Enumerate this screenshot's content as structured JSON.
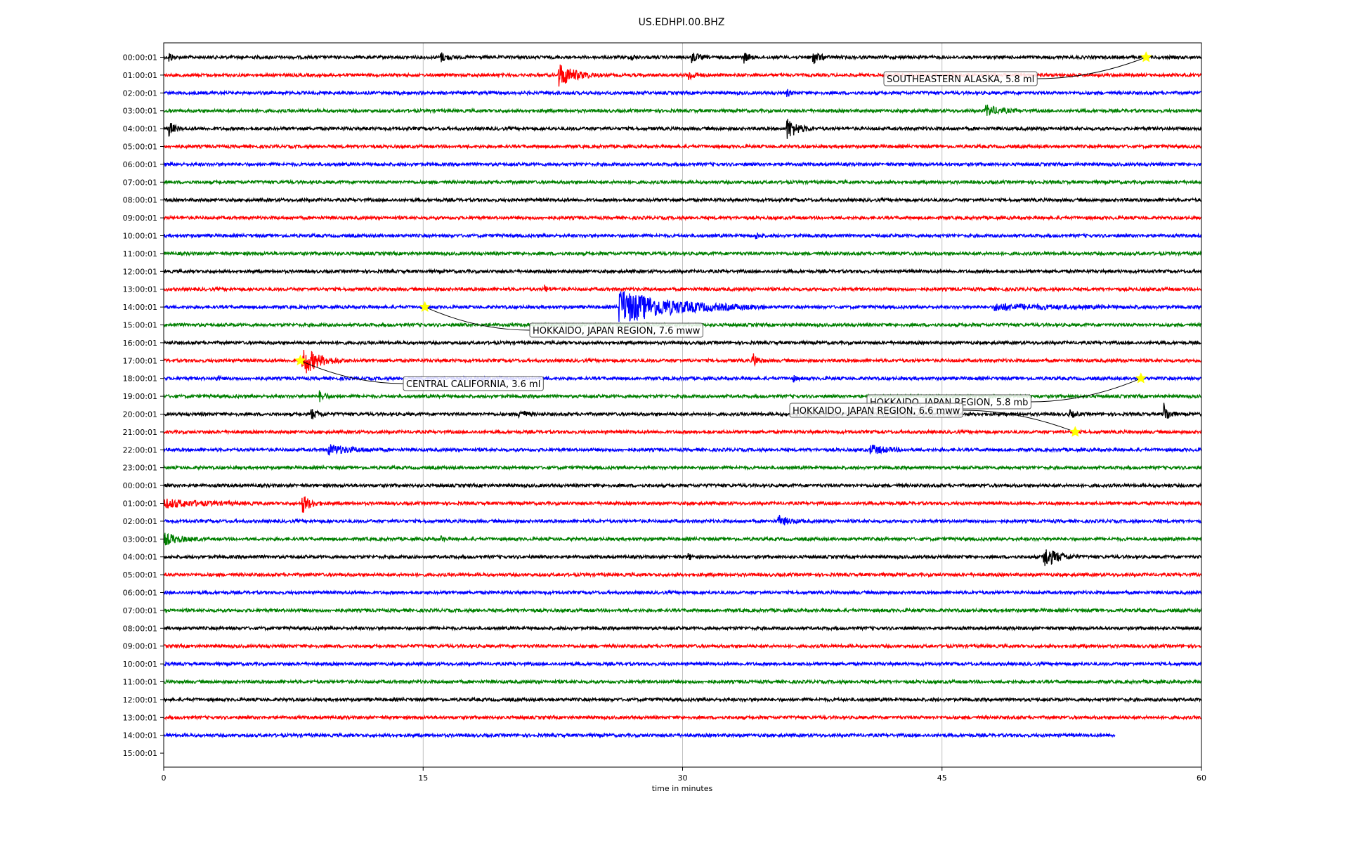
{
  "chart_data": {
    "type": "line",
    "title": "US.EDHPI.00.BHZ",
    "xlabel": "time in minutes",
    "ylabel": "",
    "xlim": [
      0,
      60
    ],
    "x_ticks": [
      0,
      15,
      30,
      45,
      60
    ],
    "grid": "vertical",
    "trace_colors": [
      "#000000",
      "#ff0000",
      "#0000ff",
      "#008000"
    ],
    "marker_color": "#ffff00",
    "hour_labels": [
      "00:00:01",
      "01:00:01",
      "02:00:01",
      "03:00:01",
      "04:00:01",
      "05:00:01",
      "06:00:01",
      "07:00:01",
      "08:00:01",
      "09:00:01",
      "10:00:01",
      "11:00:01",
      "12:00:01",
      "13:00:01",
      "14:00:01",
      "15:00:01",
      "16:00:01",
      "17:00:01",
      "18:00:01",
      "19:00:01",
      "20:00:01",
      "21:00:01",
      "22:00:01",
      "23:00:01",
      "00:00:01",
      "01:00:01",
      "02:00:01",
      "03:00:01",
      "04:00:01",
      "05:00:01",
      "06:00:01",
      "07:00:01",
      "08:00:01",
      "09:00:01",
      "10:00:01",
      "11:00:01",
      "12:00:01",
      "13:00:01",
      "14:00:01",
      "15:00:01"
    ],
    "trace_end_minutes": [
      60,
      60,
      60,
      60,
      60,
      60,
      60,
      60,
      60,
      60,
      60,
      60,
      60,
      60,
      60,
      60,
      60,
      60,
      60,
      60,
      60,
      60,
      60,
      60,
      60,
      60,
      60,
      60,
      60,
      60,
      60,
      60,
      60,
      60,
      60,
      60,
      60,
      60,
      55,
      0
    ],
    "bursts": [
      {
        "row": 0,
        "minute": 0.3,
        "amp": 0.6,
        "dur": 0.5
      },
      {
        "row": 0,
        "minute": 16,
        "amp": 0.5,
        "dur": 1.0
      },
      {
        "row": 0,
        "minute": 27,
        "amp": 0.5,
        "dur": 0.5
      },
      {
        "row": 0,
        "minute": 30.5,
        "amp": 0.6,
        "dur": 1.0
      },
      {
        "row": 0,
        "minute": 33.5,
        "amp": 0.6,
        "dur": 0.8
      },
      {
        "row": 0,
        "minute": 37.5,
        "amp": 0.8,
        "dur": 1.0
      },
      {
        "row": 1,
        "minute": 22.8,
        "amp": 1.3,
        "dur": 2.5
      },
      {
        "row": 1,
        "minute": 30.3,
        "amp": 0.6,
        "dur": 1.0
      },
      {
        "row": 2,
        "minute": 36,
        "amp": 0.4,
        "dur": 0.5
      },
      {
        "row": 3,
        "minute": 47.5,
        "amp": 0.6,
        "dur": 2.0
      },
      {
        "row": 4,
        "minute": 0.3,
        "amp": 0.8,
        "dur": 0.8
      },
      {
        "row": 4,
        "minute": 36,
        "amp": 1.2,
        "dur": 1.6
      },
      {
        "row": 10,
        "minute": 34.2,
        "amp": 0.4,
        "dur": 0.5
      },
      {
        "row": 13,
        "minute": 22,
        "amp": 0.4,
        "dur": 0.6
      },
      {
        "row": 14,
        "minute": 26.3,
        "amp": 1.8,
        "dur": 8.5
      },
      {
        "row": 14,
        "minute": 48,
        "amp": 0.3,
        "dur": 10
      },
      {
        "row": 17,
        "minute": 8,
        "amp": 1.6,
        "dur": 2.5
      },
      {
        "row": 17,
        "minute": 34,
        "amp": 0.9,
        "dur": 0.8
      },
      {
        "row": 18,
        "minute": 3,
        "amp": 0.4,
        "dur": 0.5
      },
      {
        "row": 18,
        "minute": 36.3,
        "amp": 0.5,
        "dur": 0.5
      },
      {
        "row": 19,
        "minute": 9,
        "amp": 0.5,
        "dur": 1.0
      },
      {
        "row": 20,
        "minute": 8.5,
        "amp": 0.6,
        "dur": 1.0
      },
      {
        "row": 20,
        "minute": 20.5,
        "amp": 0.6,
        "dur": 1.0
      },
      {
        "row": 20,
        "minute": 52.3,
        "amp": 0.5,
        "dur": 0.8
      },
      {
        "row": 20,
        "minute": 57.8,
        "amp": 1.2,
        "dur": 0.8
      },
      {
        "row": 22,
        "minute": 9.5,
        "amp": 0.5,
        "dur": 3.5
      },
      {
        "row": 22,
        "minute": 40.8,
        "amp": 0.5,
        "dur": 2.5
      },
      {
        "row": 25,
        "minute": 0,
        "amp": 0.4,
        "dur": 6.0
      },
      {
        "row": 25,
        "minute": 8,
        "amp": 1.0,
        "dur": 1.2
      },
      {
        "row": 26,
        "minute": 35.5,
        "amp": 0.6,
        "dur": 1.5
      },
      {
        "row": 27,
        "minute": 0,
        "amp": 0.6,
        "dur": 2.5
      },
      {
        "row": 27,
        "minute": 16,
        "amp": 0.3,
        "dur": 0.5
      },
      {
        "row": 28,
        "minute": 30.3,
        "amp": 0.4,
        "dur": 0.5
      },
      {
        "row": 28,
        "minute": 50.8,
        "amp": 1.2,
        "dur": 2.2
      }
    ],
    "events": [
      {
        "label": "SOUTHEASTERN ALASKA, 5.8 ml",
        "row": 0,
        "minute": 56.8
      },
      {
        "label": "HOKKAIDO, JAPAN REGION, 7.6 mww",
        "row": 14,
        "minute": 15.1
      },
      {
        "label": "CENTRAL CALIFORNIA, 3.6 ml",
        "row": 17,
        "minute": 7.9
      },
      {
        "label": "HOKKAIDO, JAPAN REGION, 5.8 mb",
        "row": 18,
        "minute": 56.5
      },
      {
        "label": "HOKKAIDO, JAPAN REGION, 6.6 mww",
        "row": 21,
        "minute": 52.7
      }
    ]
  }
}
